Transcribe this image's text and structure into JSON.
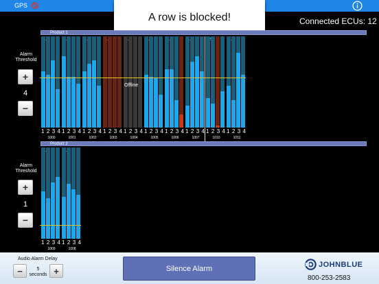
{
  "topbar": {
    "gps_label": "GPS",
    "gps_icon": "gps-disabled-icon",
    "info_icon": "info-icon",
    "bar_color": "#1f86e6"
  },
  "toast": {
    "message": "A row is blocked!"
  },
  "ecu": {
    "connected_text": "Connected ECUs: 12"
  },
  "colors": {
    "normal_fill": "#1ea7ea",
    "column_bg": "#1a5f7a",
    "blocked_bg": "#6b2414",
    "blocked_fill": "#c83818",
    "offline_bg": "#3a3a3a",
    "threshold": "#e2c320"
  },
  "products": [
    {
      "header": "Product 1",
      "threshold_label": "Alarm\nThreshold",
      "threshold_value": "4",
      "threshold_level": 0.55,
      "rows": [
        {
          "id": "1000",
          "label": "1",
          "status": "normal",
          "levels": [
            0.62,
            0.58,
            0.74,
            0.42
          ],
          "section_nums": [
            "1",
            "2",
            "3",
            "4"
          ]
        },
        {
          "id": "1001",
          "label": "1",
          "status": "normal",
          "levels": [
            0.78,
            0.56,
            0.56,
            0.48
          ],
          "section_nums": [
            "1",
            "2",
            "3",
            "4"
          ]
        },
        {
          "id": "1002",
          "label": "1",
          "status": "normal",
          "levels": [
            0.62,
            0.7,
            0.74,
            0.46
          ],
          "section_nums": [
            "1",
            "2",
            "3",
            "4"
          ]
        },
        {
          "id": "1003",
          "label": "1",
          "status": "blocked",
          "levels": [
            0,
            0,
            0,
            0
          ],
          "section_nums": [
            "1",
            "2",
            "3",
            "4"
          ]
        },
        {
          "id": "1004",
          "label": "1",
          "status": "offline",
          "levels": [
            0,
            0,
            0,
            0
          ],
          "section_nums": [
            "1",
            "2",
            "3",
            "4"
          ]
        },
        {
          "id": "1005",
          "label": "1",
          "status": "normal",
          "levels": [
            0.58,
            0.56,
            0.54,
            0.36
          ],
          "section_nums": [
            "1",
            "2",
            "3",
            "4"
          ]
        },
        {
          "id": "1006",
          "label": "1",
          "status": "partial",
          "levels": [
            0.64,
            0.64,
            0.3,
            0.14
          ],
          "blocked_sections": [
            3
          ],
          "section_nums": [
            "1",
            "2",
            "3",
            "4"
          ]
        },
        {
          "id": "1007",
          "label": "1",
          "status": "normal",
          "levels": [
            0.24,
            0.72,
            0.78,
            0.62
          ],
          "section_nums": [
            "1",
            "2",
            "3",
            "4"
          ]
        },
        {
          "id": "1010",
          "label": "2",
          "status": "partial",
          "levels": [
            0.32,
            0.26,
            0.02,
            0.4
          ],
          "blocked_sections": [
            2
          ],
          "section_nums": [
            "1",
            "2",
            "3",
            "4"
          ]
        },
        {
          "id": "1011",
          "label": "1",
          "status": "normal",
          "levels": [
            0.46,
            0.3,
            0.82,
            0.58
          ],
          "section_nums": [
            "1",
            "2",
            "3",
            "4"
          ]
        }
      ]
    },
    {
      "header": "Product 2",
      "threshold_label": "Alarm\nThreshold",
      "threshold_value": "1",
      "threshold_level": 0.15,
      "rows": [
        {
          "id": "1009",
          "label": "1",
          "status": "normal",
          "levels": [
            0.52,
            0.44,
            0.62,
            0.68
          ],
          "section_nums": [
            "1",
            "2",
            "3",
            "4"
          ]
        },
        {
          "id": "1008",
          "label": "1",
          "status": "normal",
          "levels": [
            0.46,
            0.6,
            0.54,
            0.48
          ],
          "section_nums": [
            "1",
            "2",
            "3",
            "4"
          ]
        }
      ]
    }
  ],
  "offline_text": "Offline",
  "bottom": {
    "delay_label": "Audio Alarm Delay",
    "delay_value": "5",
    "delay_unit": "seconds",
    "minus": "−",
    "plus": "+",
    "silence_label": "Silence Alarm",
    "logo_text": "JOHNBLUE",
    "phone": "800-253-2583"
  }
}
